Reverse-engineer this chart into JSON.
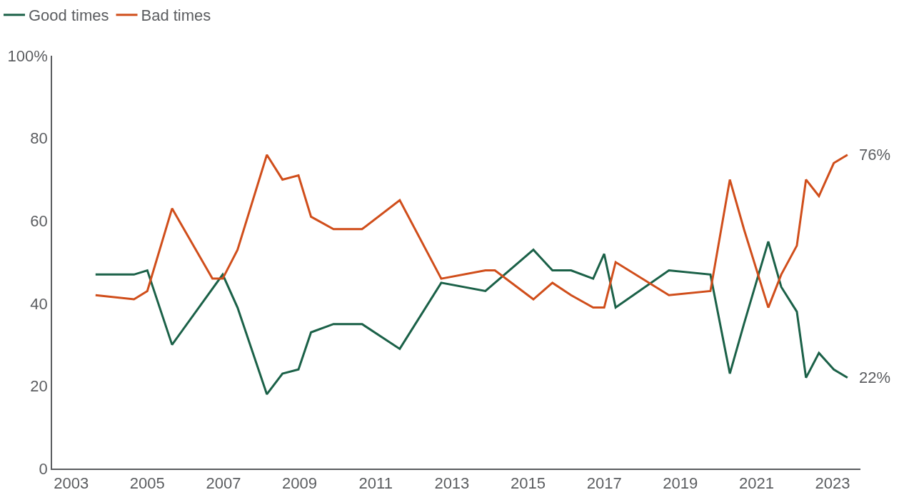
{
  "chart_data": {
    "type": "line",
    "series": [
      {
        "name": "Good times",
        "color": "#1b6148",
        "x": [
          2003.64,
          2004.65,
          2005.0,
          2005.65,
          2006.98,
          2007.37,
          2008.14,
          2008.55,
          2008.97,
          2009.3,
          2009.89,
          2010.64,
          2011.63,
          2012.72,
          2013.88,
          2015.14,
          2015.64,
          2016.13,
          2016.71,
          2017.0,
          2017.3,
          2018.7,
          2019.79,
          2020.3,
          2020.67,
          2021.31,
          2021.65,
          2022.06,
          2022.3,
          2022.64,
          2023.03,
          2023.39
        ],
        "values": [
          47,
          47,
          48,
          30,
          47,
          39,
          18,
          23,
          24,
          33,
          35,
          35,
          29,
          45,
          43,
          53,
          48,
          48,
          46,
          52,
          39,
          48,
          47,
          23,
          35,
          55,
          44,
          38,
          22,
          28,
          24,
          22
        ]
      },
      {
        "name": "Bad times",
        "color": "#d04e1b",
        "x": [
          2003.64,
          2004.65,
          2005.0,
          2005.65,
          2006.71,
          2006.98,
          2007.37,
          2008.14,
          2008.55,
          2008.97,
          2009.3,
          2009.89,
          2010.64,
          2011.63,
          2012.72,
          2013.88,
          2014.13,
          2015.14,
          2015.64,
          2016.13,
          2016.71,
          2017.0,
          2017.3,
          2018.7,
          2019.79,
          2020.3,
          2020.67,
          2021.31,
          2021.65,
          2022.06,
          2022.3,
          2022.64,
          2023.03,
          2023.39
        ],
        "values": [
          42,
          41,
          43,
          63,
          46,
          46,
          53,
          76,
          70,
          71,
          61,
          58,
          58,
          65,
          46,
          48,
          48,
          41,
          45,
          42,
          39,
          39,
          50,
          42,
          43,
          70,
          58,
          39,
          47,
          54,
          70,
          66,
          74,
          76
        ]
      }
    ],
    "annotations": [
      {
        "text": "76%",
        "x": 2023.39,
        "y": 76
      },
      {
        "text": "22%",
        "x": 2023.39,
        "y": 22
      }
    ],
    "xlim": [
      2002.5,
      2023.73
    ],
    "xticks": [
      2003,
      2005,
      2007,
      2009,
      2011,
      2013,
      2015,
      2017,
      2019,
      2021,
      2023
    ],
    "ylim": [
      0,
      100
    ],
    "yticks": [
      0,
      20,
      40,
      60,
      80,
      {
        "value": 100,
        "label": "100%"
      }
    ],
    "grid": false,
    "legend": "top left",
    "marker": "none",
    "line_style": "solid"
  }
}
